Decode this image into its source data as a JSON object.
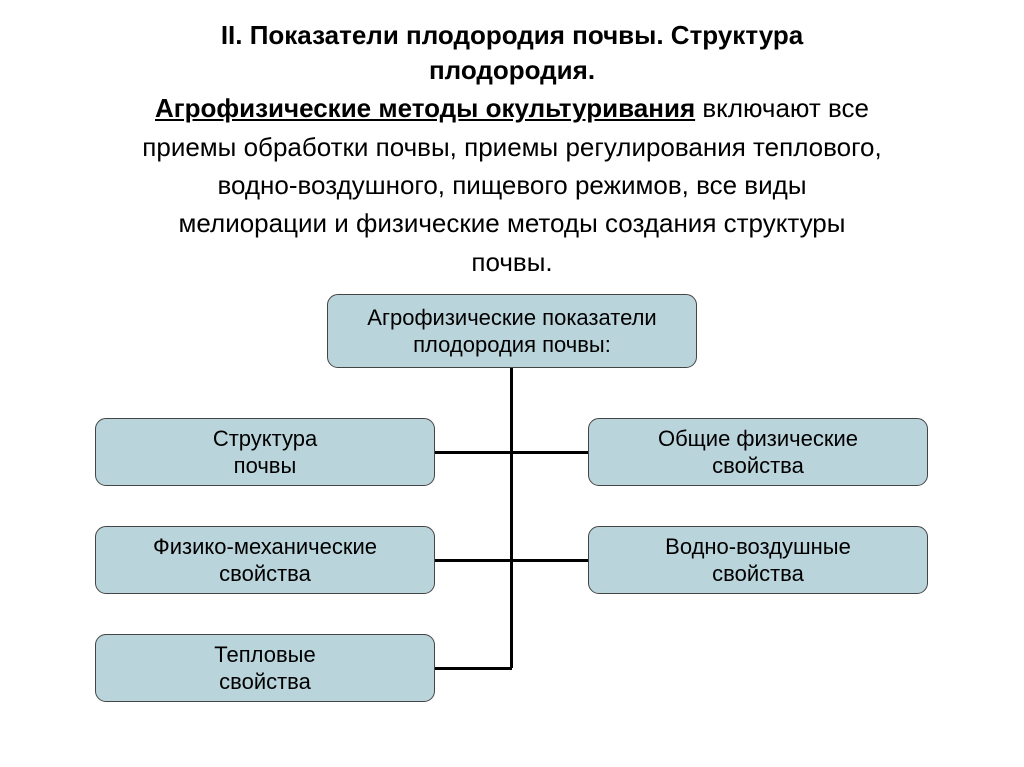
{
  "header": {
    "title_line1": "II. Показатели плодородия почвы. Структура",
    "title_line2": "плодородия.",
    "lead_underlined": "Агрофизические методы окультуривания",
    "lead_rest1": " включают все",
    "body_line1": "приемы обработки почвы, приемы регулирования теплового,",
    "body_line2": "водно-воздушного, пищевого режимов, все виды",
    "body_line3": "мелиорации и физические методы создания структуры",
    "body_line4": "почвы."
  },
  "diagram": {
    "type": "tree",
    "node_color": "#b9d4db",
    "node_border": "#444444",
    "line_color": "#000000",
    "background_color": "#ffffff",
    "node_fontsize": 22,
    "root": {
      "line1": "Агрофизические показатели",
      "line2": "плодородия почвы:"
    },
    "children": [
      {
        "line1": "Структура",
        "line2": "почвы",
        "side": "left",
        "row": 1
      },
      {
        "line1": "Общие физические",
        "line2": "свойства",
        "side": "right",
        "row": 1
      },
      {
        "line1": "Физико-механические",
        "line2": "свойства",
        "side": "left",
        "row": 2
      },
      {
        "line1": "Водно-воздушные",
        "line2": "свойства",
        "side": "right",
        "row": 2
      },
      {
        "line1": "Тепловые",
        "line2": "свойства",
        "side": "left",
        "row": 3
      }
    ]
  }
}
